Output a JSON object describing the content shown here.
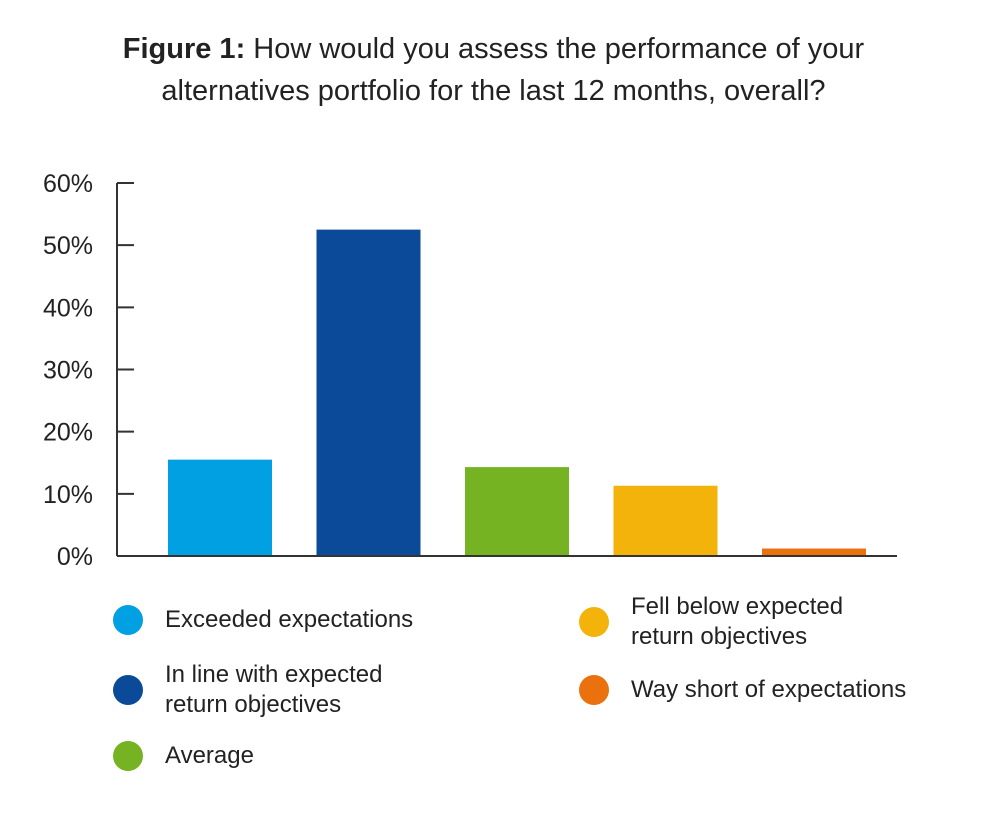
{
  "title": {
    "lead": "Figure 1:",
    "line1": "How would you assess the performance of your",
    "line2": "alternatives portfolio for the last 12 months, overall?"
  },
  "chart_data": {
    "type": "bar",
    "categories": [
      "Exceeded expectations",
      "In line with expected return objectives",
      "Average",
      "Fell below expected return objectives",
      "Way short of expectations"
    ],
    "values": [
      15.5,
      52.5,
      14.3,
      11.3,
      1.2
    ],
    "colors": [
      "#00A0E3",
      "#0B4A98",
      "#75B323",
      "#F4B30A",
      "#EB700E"
    ],
    "ylim": [
      0,
      60
    ],
    "yticks": [
      "0%",
      "10%",
      "20%",
      "30%",
      "40%",
      "50%",
      "60%"
    ],
    "grid": false,
    "legend_position": "bottom"
  },
  "legend": [
    {
      "line1": "Exceeded expectations",
      "line2": "",
      "color": "#00A0E3"
    },
    {
      "line1": "In line with expected",
      "line2": "return objectives",
      "color": "#0B4A98"
    },
    {
      "line1": "Average",
      "line2": "",
      "color": "#75B323"
    },
    {
      "line1": "Fell below expected",
      "line2": "return objectives",
      "color": "#F4B30A"
    },
    {
      "line1": "Way short of expectations",
      "line2": "",
      "color": "#EB700E"
    }
  ]
}
